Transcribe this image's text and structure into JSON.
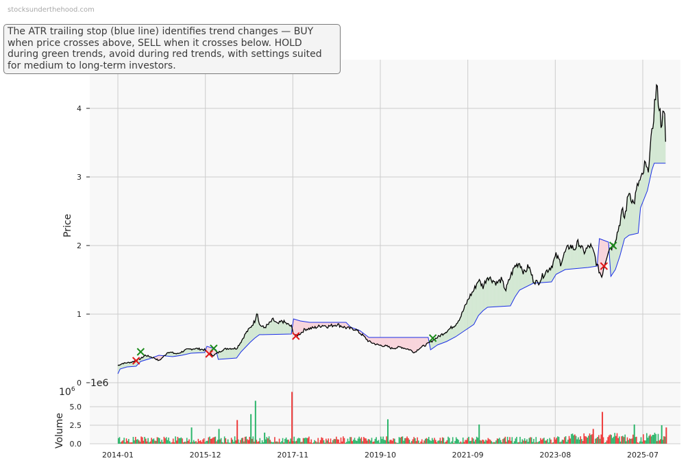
{
  "watermark": "stocksunderthehood.com",
  "annotation": "The ATR trailing stop (blue line) identifies trend changes — BUY when price crosses above, SELL when it crosses below. HOLD during green trends, avoid during red trends, with settings suited for medium to long-term investors.",
  "colors": {
    "price": "#000000",
    "stop": "#1a2ee6",
    "bull_fill": "#cfe6cf",
    "bear_fill": "#f8d0d8",
    "buy": "#1a8a1a",
    "sell": "#e01818",
    "vol_up": "#2bb56a",
    "vol_down": "#ee3b3b",
    "panel_bg": "#f8f8f8",
    "grid": "#cccccc"
  },
  "chart_data": [
    {
      "type": "line",
      "ylabel": "Price",
      "ylim": [
        0,
        4.7
      ],
      "yticks": [
        "0",
        "1",
        "2",
        "3",
        "4"
      ],
      "xticks": [
        "2014-01",
        "2015-12",
        "2017-11",
        "2019-10",
        "2021-09",
        "2023-08",
        "2025-07"
      ],
      "xlim": [
        2013.7,
        2026.1
      ],
      "grid": true,
      "series": [
        {
          "key": "price",
          "points": [
            [
              2014.0,
              0.25
            ],
            [
              2014.1,
              0.28
            ],
            [
              2014.3,
              0.3
            ],
            [
              2014.5,
              0.35
            ],
            [
              2014.6,
              0.4
            ],
            [
              2014.8,
              0.36
            ],
            [
              2014.9,
              0.32
            ],
            [
              2015.0,
              0.38
            ],
            [
              2015.1,
              0.45
            ],
            [
              2015.3,
              0.42
            ],
            [
              2015.5,
              0.48
            ],
            [
              2015.7,
              0.5
            ],
            [
              2015.9,
              0.48
            ],
            [
              2016.0,
              0.42
            ],
            [
              2016.1,
              0.4
            ],
            [
              2016.3,
              0.48
            ],
            [
              2016.4,
              0.5
            ],
            [
              2016.6,
              0.5
            ],
            [
              2016.7,
              0.6
            ],
            [
              2016.8,
              0.72
            ],
            [
              2016.9,
              0.8
            ],
            [
              2017.0,
              0.9
            ],
            [
              2017.05,
              1.05
            ],
            [
              2017.1,
              0.85
            ],
            [
              2017.2,
              0.8
            ],
            [
              2017.3,
              0.85
            ],
            [
              2017.4,
              0.92
            ],
            [
              2017.5,
              0.85
            ],
            [
              2017.6,
              0.9
            ],
            [
              2017.7,
              0.86
            ],
            [
              2017.8,
              0.82
            ],
            [
              2017.85,
              0.72
            ],
            [
              2017.9,
              0.68
            ],
            [
              2018.0,
              0.72
            ],
            [
              2018.1,
              0.78
            ],
            [
              2018.3,
              0.8
            ],
            [
              2018.5,
              0.84
            ],
            [
              2018.6,
              0.82
            ],
            [
              2018.8,
              0.85
            ],
            [
              2019.0,
              0.8
            ],
            [
              2019.2,
              0.78
            ],
            [
              2019.35,
              0.7
            ],
            [
              2019.5,
              0.6
            ],
            [
              2019.7,
              0.55
            ],
            [
              2019.9,
              0.53
            ],
            [
              2020.0,
              0.5
            ],
            [
              2020.2,
              0.52
            ],
            [
              2020.4,
              0.48
            ],
            [
              2020.5,
              0.44
            ],
            [
              2020.6,
              0.5
            ],
            [
              2020.8,
              0.57
            ],
            [
              2020.9,
              0.62
            ],
            [
              2021.0,
              0.66
            ],
            [
              2021.2,
              0.75
            ],
            [
              2021.4,
              0.85
            ],
            [
              2021.5,
              0.95
            ],
            [
              2021.6,
              1.1
            ],
            [
              2021.7,
              1.25
            ],
            [
              2021.8,
              1.35
            ],
            [
              2021.9,
              1.5
            ],
            [
              2022.0,
              1.4
            ],
            [
              2022.1,
              1.55
            ],
            [
              2022.3,
              1.45
            ],
            [
              2022.4,
              1.5
            ],
            [
              2022.5,
              1.35
            ],
            [
              2022.6,
              1.55
            ],
            [
              2022.7,
              1.7
            ],
            [
              2022.8,
              1.75
            ],
            [
              2022.9,
              1.6
            ],
            [
              2023.0,
              1.7
            ],
            [
              2023.1,
              1.5
            ],
            [
              2023.2,
              1.45
            ],
            [
              2023.35,
              1.6
            ],
            [
              2023.5,
              1.7
            ],
            [
              2023.6,
              1.85
            ],
            [
              2023.7,
              1.75
            ],
            [
              2023.8,
              1.9
            ],
            [
              2023.9,
              2.0
            ],
            [
              2024.0,
              1.95
            ],
            [
              2024.1,
              2.05
            ],
            [
              2024.2,
              1.9
            ],
            [
              2024.35,
              2.0
            ],
            [
              2024.45,
              1.85
            ],
            [
              2024.5,
              1.7
            ],
            [
              2024.6,
              1.55
            ],
            [
              2024.65,
              1.7
            ],
            [
              2024.75,
              1.95
            ],
            [
              2024.85,
              2.0
            ],
            [
              2024.95,
              2.2
            ],
            [
              2025.05,
              2.5
            ],
            [
              2025.1,
              2.4
            ],
            [
              2025.2,
              2.8
            ],
            [
              2025.3,
              2.6
            ],
            [
              2025.4,
              2.9
            ],
            [
              2025.5,
              3.0
            ],
            [
              2025.55,
              3.2
            ],
            [
              2025.6,
              3.05
            ],
            [
              2025.7,
              3.6
            ],
            [
              2025.75,
              4.0
            ],
            [
              2025.8,
              4.3
            ],
            [
              2025.85,
              4.1
            ],
            [
              2025.9,
              3.8
            ],
            [
              2025.95,
              3.9
            ],
            [
              2025.98,
              3.85
            ],
            [
              2026.0,
              3.52
            ]
          ]
        },
        {
          "key": "stop",
          "points": [
            [
              2014.0,
              0.13
            ],
            [
              2014.05,
              0.2
            ],
            [
              2014.2,
              0.23
            ],
            [
              2014.4,
              0.24
            ],
            [
              2014.5,
              0.31
            ],
            [
              2014.7,
              0.35
            ],
            [
              2014.9,
              0.4
            ],
            [
              2015.2,
              0.38
            ],
            [
              2015.4,
              0.4
            ],
            [
              2015.6,
              0.43
            ],
            [
              2015.9,
              0.44
            ],
            [
              2015.95,
              0.53
            ],
            [
              2016.1,
              0.5
            ],
            [
              2016.15,
              0.48
            ],
            [
              2016.2,
              0.34
            ],
            [
              2016.6,
              0.36
            ],
            [
              2016.7,
              0.45
            ],
            [
              2016.8,
              0.52
            ],
            [
              2016.9,
              0.59
            ],
            [
              2017.0,
              0.65
            ],
            [
              2017.1,
              0.7
            ],
            [
              2017.8,
              0.71
            ],
            [
              2017.85,
              0.93
            ],
            [
              2018.0,
              0.9
            ],
            [
              2018.2,
              0.88
            ],
            [
              2019.0,
              0.88
            ],
            [
              2019.1,
              0.81
            ],
            [
              2019.3,
              0.76
            ],
            [
              2019.5,
              0.66
            ],
            [
              2020.8,
              0.66
            ],
            [
              2020.85,
              0.48
            ],
            [
              2021.0,
              0.55
            ],
            [
              2021.2,
              0.6
            ],
            [
              2021.4,
              0.67
            ],
            [
              2021.6,
              0.76
            ],
            [
              2021.8,
              0.85
            ],
            [
              2021.9,
              0.98
            ],
            [
              2022.0,
              1.05
            ],
            [
              2022.1,
              1.1
            ],
            [
              2022.6,
              1.12
            ],
            [
              2022.7,
              1.25
            ],
            [
              2022.8,
              1.35
            ],
            [
              2023.1,
              1.45
            ],
            [
              2023.5,
              1.47
            ],
            [
              2023.6,
              1.58
            ],
            [
              2023.8,
              1.65
            ],
            [
              2024.3,
              1.68
            ],
            [
              2024.5,
              1.7
            ],
            [
              2024.55,
              2.1
            ],
            [
              2024.75,
              2.05
            ],
            [
              2024.8,
              1.55
            ],
            [
              2024.9,
              1.65
            ],
            [
              2025.0,
              1.85
            ],
            [
              2025.1,
              2.1
            ],
            [
              2025.2,
              2.15
            ],
            [
              2025.4,
              2.18
            ],
            [
              2025.45,
              2.55
            ],
            [
              2025.6,
              2.8
            ],
            [
              2025.7,
              3.1
            ],
            [
              2025.75,
              3.2
            ],
            [
              2026.0,
              3.2
            ]
          ]
        }
      ],
      "buy_signals": [
        [
          2014.5,
          0.45
        ],
        [
          2016.1,
          0.5
        ],
        [
          2020.9,
          0.65
        ],
        [
          2024.85,
          2.0
        ]
      ],
      "sell_signals": [
        [
          2014.4,
          0.32
        ],
        [
          2016.0,
          0.42
        ],
        [
          2017.9,
          0.68
        ],
        [
          2024.65,
          1.7
        ]
      ]
    },
    {
      "type": "bar",
      "ylabel": "Volume",
      "multiplier": "1e6",
      "ylim": [
        0,
        7.5
      ],
      "yticks": [
        "0.0",
        "2.5",
        "5.0"
      ],
      "spikes": [
        [
          2015.6,
          2.2,
          "up"
        ],
        [
          2016.2,
          2.0,
          "up"
        ],
        [
          2016.6,
          3.2,
          "down"
        ],
        [
          2016.9,
          4.0,
          "up"
        ],
        [
          2017.0,
          5.8,
          "up"
        ],
        [
          2017.2,
          1.5,
          "up"
        ],
        [
          2017.8,
          7.0,
          "down"
        ],
        [
          2019.9,
          3.3,
          "up"
        ],
        [
          2021.9,
          2.6,
          "up"
        ],
        [
          2024.4,
          2.0,
          "down"
        ],
        [
          2024.6,
          4.3,
          "down"
        ],
        [
          2025.3,
          2.6,
          "up"
        ],
        [
          2025.9,
          2.5,
          "up"
        ],
        [
          2026.0,
          2.2,
          "down"
        ]
      ]
    }
  ]
}
